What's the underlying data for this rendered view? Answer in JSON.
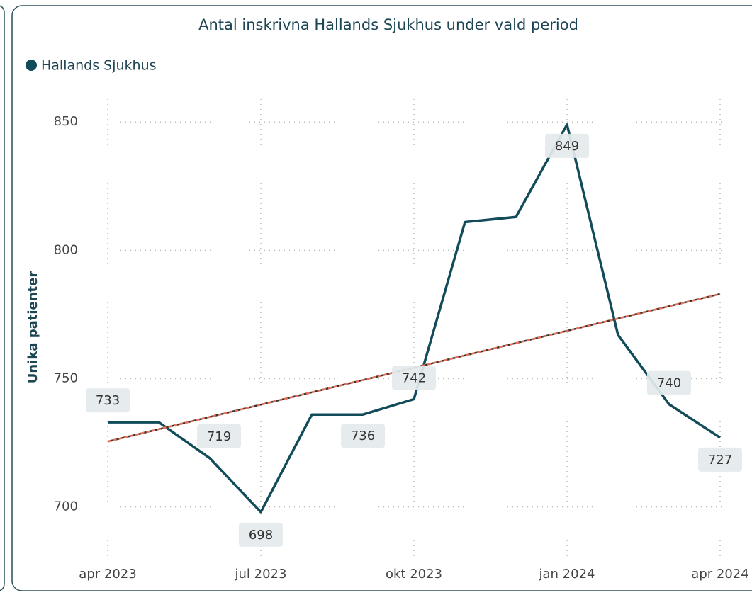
{
  "chart_data": {
    "type": "line",
    "title": "Antal inskrivna Hallands Sjukhus under vald period",
    "y_label": "Unika patienter",
    "categories": [
      "apr 2023",
      null,
      null,
      "jul 2023",
      null,
      null,
      "okt 2023",
      null,
      null,
      "jan 2024",
      null,
      null,
      "apr 2024"
    ],
    "series": [
      {
        "name": "Hallands Sjukhus",
        "color": "#124b59",
        "values": [
          733,
          733,
          719,
          698,
          736,
          736,
          742,
          811,
          813,
          849,
          767,
          740,
          727
        ]
      }
    ],
    "data_labels": [
      true,
      false,
      true,
      true,
      false,
      true,
      true,
      false,
      false,
      true,
      false,
      true,
      true
    ],
    "trendline": {
      "start": 725.5,
      "end": 783,
      "color": "#e8735a"
    },
    "ylim": [
      685,
      860
    ],
    "yticks": [
      700,
      750,
      800,
      850
    ],
    "grid": true,
    "legend": "top-left"
  }
}
